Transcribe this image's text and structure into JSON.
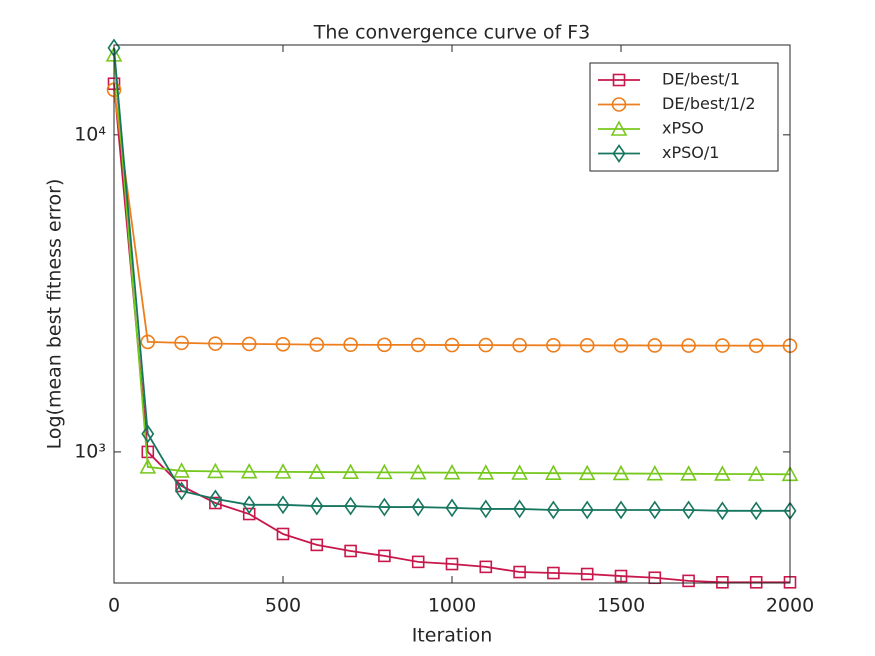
{
  "chart_data": {
    "type": "line",
    "title": "The convergence curve of F3",
    "x_label": "Iteration",
    "y_label": "Log(mean best fitness error)",
    "x": [
      0,
      100,
      200,
      300,
      400,
      500,
      600,
      700,
      800,
      900,
      1000,
      1100,
      1200,
      1300,
      1400,
      1500,
      1600,
      1700,
      1800,
      1900,
      2000
    ],
    "xlim": [
      0,
      2000
    ],
    "xticks": [
      0,
      500,
      1000,
      1500,
      2000
    ],
    "ylim": [
      386,
      19200
    ],
    "yscale": "log",
    "yticks": [
      {
        "value": 1000,
        "label": "10³"
      },
      {
        "value": 10000,
        "label": "10⁴"
      }
    ],
    "legend": "upper right",
    "series": [
      {
        "name": "DE/best/1",
        "color": "#c8174a",
        "marker": "square",
        "values": [
          14490,
          1000,
          781,
          690,
          637,
          551,
          509,
          487,
          470,
          450,
          443,
          434,
          418,
          415,
          412,
          406,
          401,
          392,
          388,
          388,
          388
        ]
      },
      {
        "name": "DE/best/1/2",
        "color": "#ee7d1c",
        "marker": "circle",
        "values": [
          13870,
          2223,
          2207,
          2195,
          2190,
          2185,
          2180,
          2178,
          2176,
          2175,
          2173,
          2172,
          2170,
          2169,
          2168,
          2167,
          2166,
          2165,
          2164,
          2163,
          2162
        ]
      },
      {
        "name": "xPSO",
        "color": "#77c81e",
        "marker": "triangle",
        "values": [
          17870,
          897,
          871,
          868,
          866,
          865,
          864,
          863,
          862,
          861,
          860,
          859,
          858,
          857,
          856,
          855,
          854,
          853,
          852,
          851,
          850
        ]
      },
      {
        "name": "xPSO/1",
        "color": "#17765f",
        "marker": "diamond",
        "values": [
          18800,
          1140,
          753,
          711,
          681,
          681,
          675,
          675,
          670,
          670,
          666,
          661,
          661,
          656,
          656,
          656,
          656,
          656,
          652,
          652,
          652
        ]
      }
    ]
  }
}
